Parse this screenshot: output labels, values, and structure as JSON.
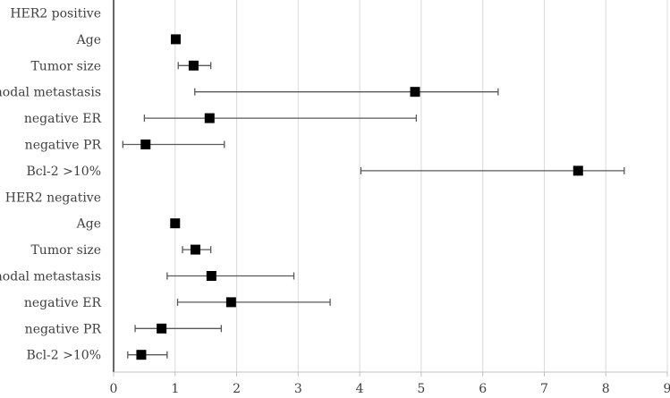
{
  "chart_data": {
    "type": "forest",
    "title": "",
    "xlabel": "",
    "ylabel": "",
    "xlim": [
      0,
      9
    ],
    "xticks": [
      0,
      1,
      2,
      3,
      4,
      5,
      6,
      7,
      8,
      9
    ],
    "grid": true,
    "rows": [
      {
        "label": "HER2 positive",
        "estimate": null,
        "lower": null,
        "upper": null
      },
      {
        "label": "Age",
        "estimate": 1.01,
        "lower": null,
        "upper": null
      },
      {
        "label": "Tumor size",
        "estimate": 1.3,
        "lower": 1.05,
        "upper": 1.58
      },
      {
        "label": "nodal metastasis",
        "estimate": 4.9,
        "lower": 1.32,
        "upper": 6.25
      },
      {
        "label": "negative ER",
        "estimate": 1.56,
        "lower": 0.5,
        "upper": 4.92
      },
      {
        "label": "negative PR",
        "estimate": 0.52,
        "lower": 0.15,
        "upper": 1.8
      },
      {
        "label": "Bcl-2 >10%",
        "estimate": 7.55,
        "lower": 4.02,
        "upper": 8.3
      },
      {
        "label": "HER2 negative",
        "estimate": null,
        "lower": null,
        "upper": null
      },
      {
        "label": "Age",
        "estimate": 1.0,
        "lower": null,
        "upper": null
      },
      {
        "label": "Tumor size",
        "estimate": 1.33,
        "lower": 1.12,
        "upper": 1.58
      },
      {
        "label": "nodal metastasis",
        "estimate": 1.59,
        "lower": 0.87,
        "upper": 2.93
      },
      {
        "label": "negative ER",
        "estimate": 1.91,
        "lower": 1.04,
        "upper": 3.52
      },
      {
        "label": "negative PR",
        "estimate": 0.78,
        "lower": 0.35,
        "upper": 1.75
      },
      {
        "label": "Bcl-2 >10%",
        "estimate": 0.45,
        "lower": 0.23,
        "upper": 0.87
      }
    ]
  }
}
